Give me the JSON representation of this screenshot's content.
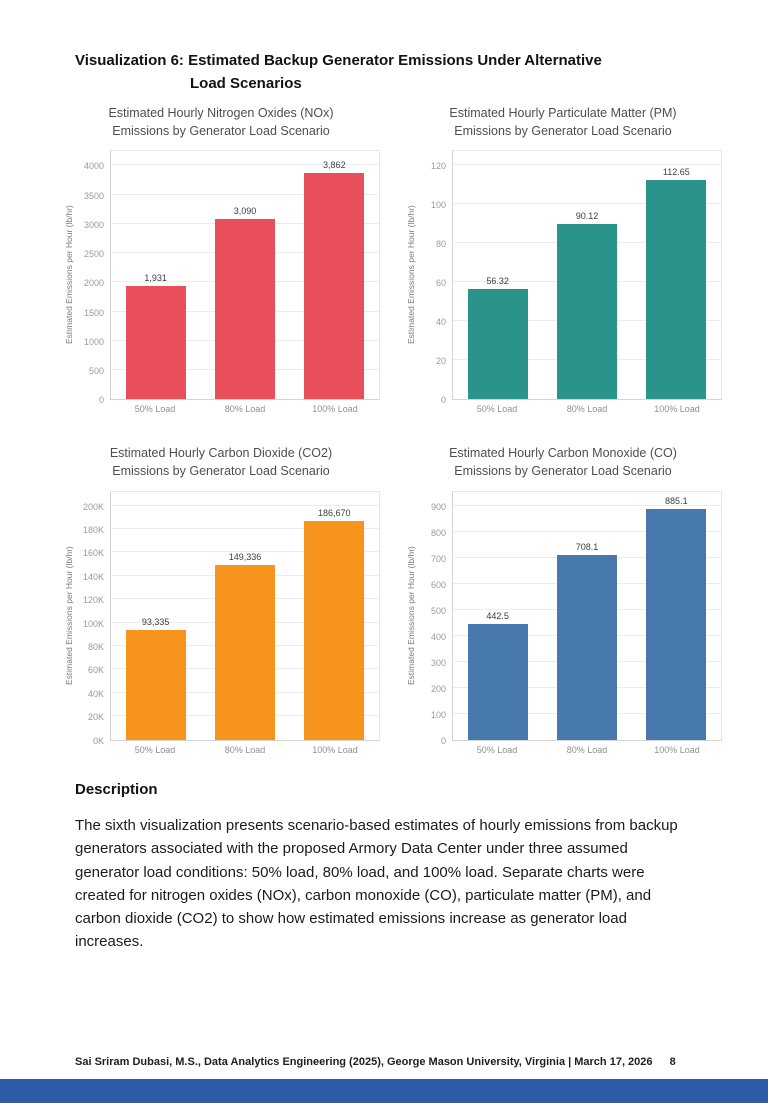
{
  "page": {
    "title_line1": "Visualization 6: Estimated Backup Generator Emissions Under Alternative",
    "title_line2": "Load Scenarios",
    "description_heading": "Description",
    "description_text": "The sixth visualization presents scenario-based estimates of hourly emissions from backup generators associated with the proposed Armory Data Center under three assumed generator load conditions: 50% load, 80% load, and 100% load. Separate charts were created for nitrogen oxides (NOx), carbon monoxide (CO), particulate matter (PM), and carbon dioxide (CO2) to show how estimated emissions increase as generator load increases.",
    "footer_text": "Sai Sriram Dubasi, M.S., Data Analytics Engineering (2025), George Mason University, Virginia  |  March 17, 2026",
    "page_number": "8",
    "accent_bar_color": "#2d5ca6"
  },
  "chart_data": [
    {
      "type": "bar",
      "title_line1": "Estimated Hourly Nitrogen Oxides (NOx)",
      "title_line2": "Emissions by Generator Load Scenario",
      "ylabel": "Estimated Emissions per Hour (lb/hr)",
      "categories": [
        "50% Load",
        "80% Load",
        "100% Load"
      ],
      "values": [
        1931,
        3090,
        3862
      ],
      "value_labels": [
        "1,931",
        "3,090",
        "3,862"
      ],
      "ylim": [
        0,
        4000
      ],
      "ytick_step": 500,
      "ytick_labels": [
        "0",
        "500",
        "1000",
        "1500",
        "2000",
        "2500",
        "3000",
        "3500",
        "4000"
      ],
      "bar_color": "#e94f5a",
      "grid": true,
      "legend": "none"
    },
    {
      "type": "bar",
      "title_line1": "Estimated Hourly Particulate Matter (PM)",
      "title_line2": "Emissions by Generator Load Scenario",
      "ylabel": "Estimated Emissions per Hour (lb/hr)",
      "categories": [
        "50% Load",
        "80% Load",
        "100% Load"
      ],
      "values": [
        56.32,
        90.12,
        112.65
      ],
      "value_labels": [
        "56.32",
        "90.12",
        "112.65"
      ],
      "ylim": [
        0,
        120
      ],
      "ytick_step": 20,
      "ytick_labels": [
        "0",
        "20",
        "40",
        "60",
        "80",
        "100",
        "120"
      ],
      "bar_color": "#2a948b",
      "grid": true,
      "legend": "none"
    },
    {
      "type": "bar",
      "title_line1": "Estimated Hourly Carbon Dioxide (CO2)",
      "title_line2": "Emissions by Generator Load Scenario",
      "ylabel": "Estimated Emissions per Hour (lb/hr)",
      "categories": [
        "50% Load",
        "80% Load",
        "100% Load"
      ],
      "values": [
        93335,
        149336,
        186670
      ],
      "value_labels": [
        "93,335",
        "149,336",
        "186,670"
      ],
      "ylim": [
        0,
        200000
      ],
      "ytick_step": 20000,
      "ytick_labels": [
        "0K",
        "20K",
        "40K",
        "60K",
        "80K",
        "100K",
        "120K",
        "140K",
        "160K",
        "180K",
        "200K"
      ],
      "bar_color": "#f7941e",
      "grid": true,
      "legend": "none"
    },
    {
      "type": "bar",
      "title_line1": "Estimated Hourly Carbon Monoxide (CO)",
      "title_line2": "Emissions by Generator Load Scenario",
      "ylabel": "Estimated Emissions per Hour (lb/hr)",
      "categories": [
        "50% Load",
        "80% Load",
        "100% Load"
      ],
      "values": [
        442.5,
        708.1,
        885.1
      ],
      "value_labels": [
        "442.5",
        "708.1",
        "885.1"
      ],
      "ylim": [
        0,
        900
      ],
      "ytick_step": 100,
      "ytick_labels": [
        "0",
        "100",
        "200",
        "300",
        "400",
        "500",
        "600",
        "700",
        "800",
        "900"
      ],
      "bar_color": "#4779ad",
      "grid": true,
      "legend": "none"
    }
  ]
}
